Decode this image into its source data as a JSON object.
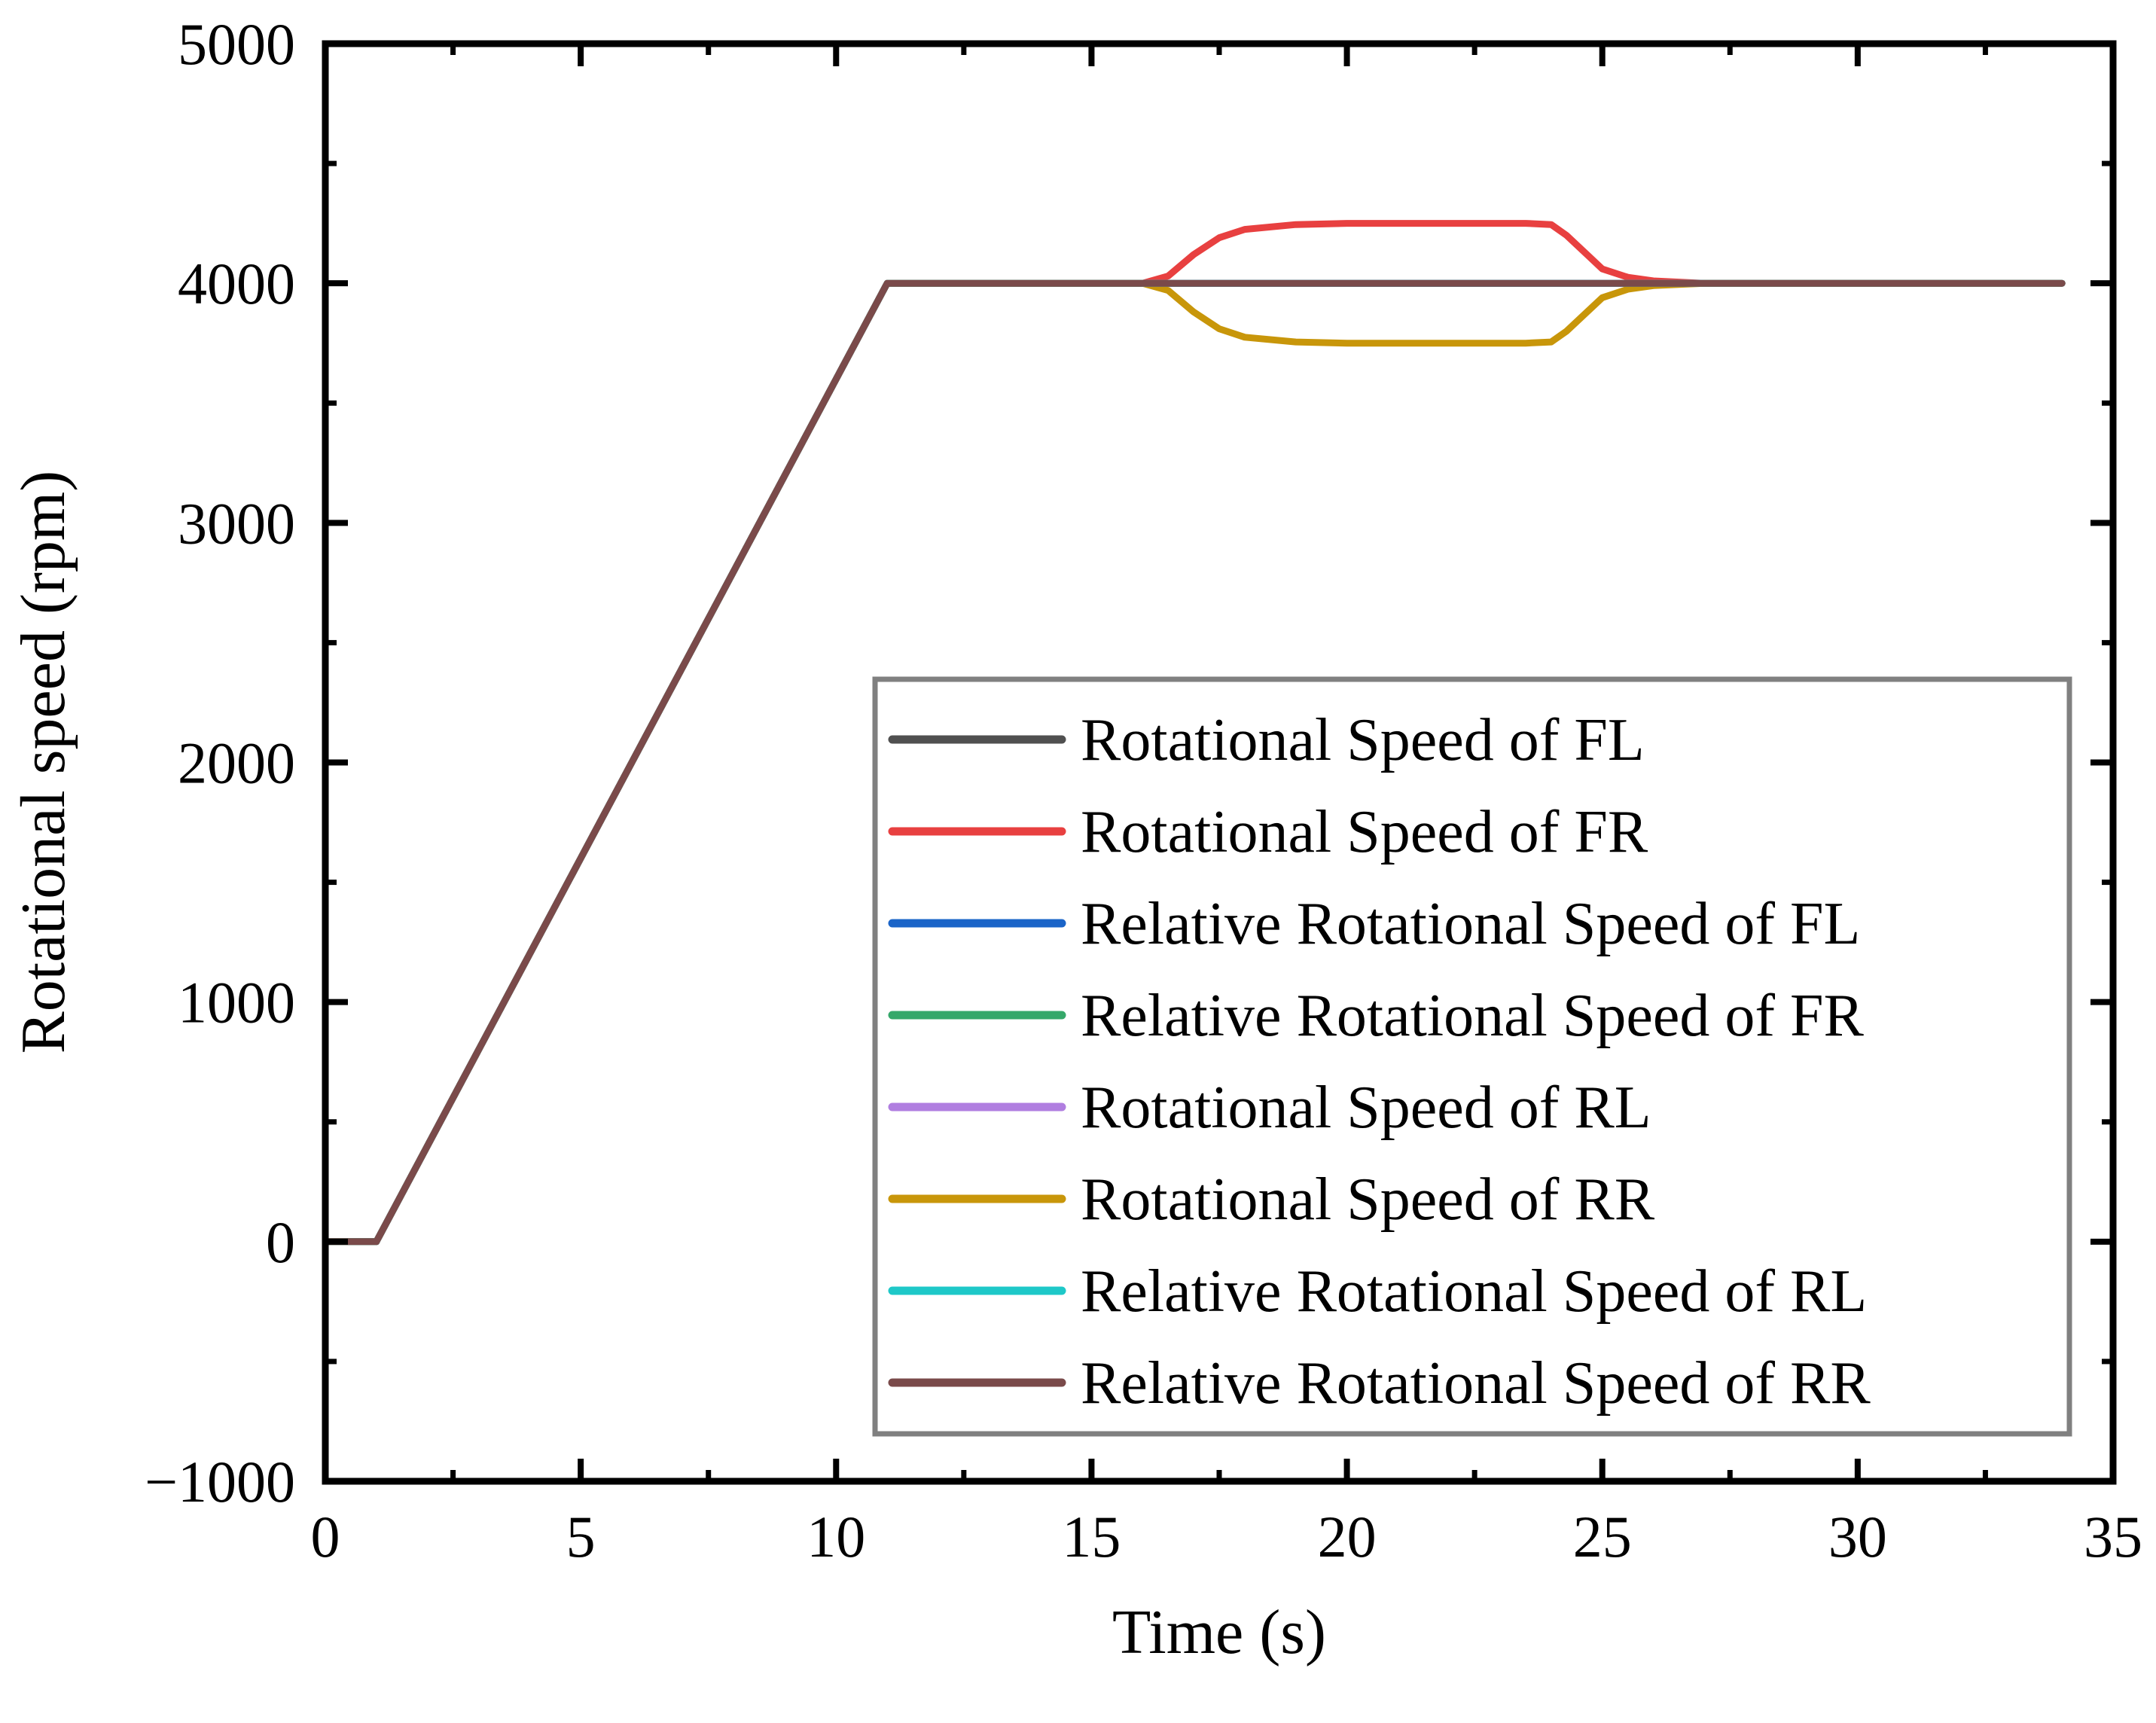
{
  "chart_data": {
    "type": "line",
    "title": "",
    "xlabel": "Time (s)",
    "ylabel": "Rotational speed (rpm)",
    "xlim": [
      0,
      35
    ],
    "ylim": [
      -1000,
      5000
    ],
    "xticks": [
      0,
      5,
      10,
      15,
      20,
      25,
      30,
      35
    ],
    "yticks": [
      -1000,
      0,
      1000,
      2000,
      3000,
      4000,
      5000
    ],
    "xtick_labels": [
      "0",
      "5",
      "10",
      "15",
      "20",
      "25",
      "30",
      "35"
    ],
    "ytick_labels": [
      "−1000",
      "0",
      "1000",
      "2000",
      "3000",
      "4000",
      "5000"
    ],
    "grid": false,
    "legend_position": "lower-right",
    "series": [
      {
        "name": "Rotational Speed of FL",
        "color": "#505050",
        "x": [
          0,
          1,
          11,
          34
        ],
        "y": [
          0,
          0,
          4000,
          4000
        ]
      },
      {
        "name": "Rotational Speed of FR",
        "color": "#e84040",
        "x": [
          0,
          1,
          11,
          16,
          16.5,
          17,
          17.5,
          18,
          19,
          20,
          22,
          23.5,
          24,
          24.3,
          24.7,
          25,
          25.5,
          26,
          27,
          34
        ],
        "y": [
          0,
          0,
          4000,
          4000,
          4030,
          4120,
          4190,
          4225,
          4245,
          4250,
          4250,
          4250,
          4245,
          4200,
          4120,
          4060,
          4025,
          4010,
          4000,
          4000
        ]
      },
      {
        "name": "Relative Rotational Speed of FL",
        "color": "#1a64c8",
        "x": [
          0,
          1,
          11,
          34
        ],
        "y": [
          0,
          0,
          4000,
          4000
        ]
      },
      {
        "name": "Relative Rotational Speed of FR",
        "color": "#35a86a",
        "x": [
          0,
          1,
          11,
          34
        ],
        "y": [
          0,
          0,
          4000,
          4000
        ]
      },
      {
        "name": "Rotational Speed of RL",
        "color": "#b07ee0",
        "x": [
          0,
          1,
          11,
          34
        ],
        "y": [
          0,
          0,
          4000,
          4000
        ]
      },
      {
        "name": "Rotational Speed of RR",
        "color": "#c8960a",
        "x": [
          0,
          1,
          11,
          16,
          16.5,
          17,
          17.5,
          18,
          19,
          20,
          22,
          23.5,
          24,
          24.3,
          24.7,
          25,
          25.5,
          26,
          27,
          34
        ],
        "y": [
          0,
          0,
          4000,
          4000,
          3970,
          3880,
          3810,
          3775,
          3755,
          3750,
          3750,
          3750,
          3755,
          3800,
          3880,
          3940,
          3975,
          3990,
          4000,
          4000
        ]
      },
      {
        "name": "Relative Rotational Speed of RL",
        "color": "#1ec8c8",
        "x": [
          0,
          1,
          11,
          34
        ],
        "y": [
          0,
          0,
          4000,
          4000
        ]
      },
      {
        "name": "Relative Rotational Speed of RR",
        "color": "#7a4a4a",
        "x": [
          0,
          1,
          11,
          34
        ],
        "y": [
          0,
          0,
          4000,
          4000
        ]
      }
    ]
  }
}
